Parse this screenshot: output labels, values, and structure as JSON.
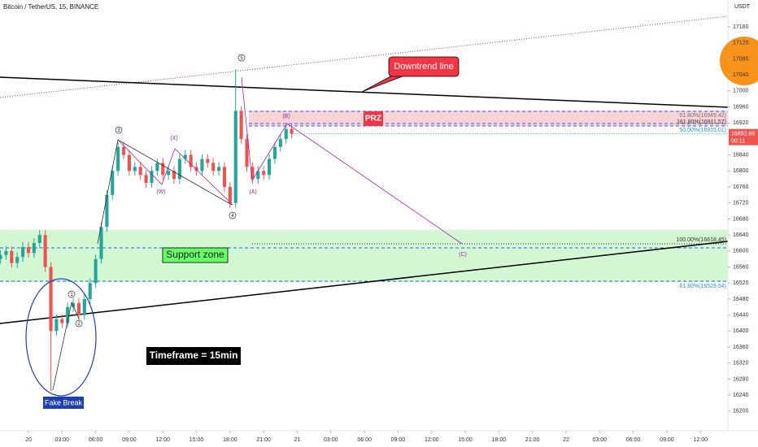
{
  "chart_data": {
    "type": "candlestick",
    "title": "Bitcoin / TetherUS, 15, BINANCE",
    "y_unit": "USDT",
    "up_color": "#26a69a",
    "down_color": "#ef5350",
    "grid": false,
    "xlim": [
      -2.54,
      62.45
    ],
    "ylim": [
      16151,
      17227
    ],
    "xticks": [
      {
        "value": 0,
        "label": "20"
      },
      {
        "value": 3,
        "label": "03:00"
      },
      {
        "value": 6,
        "label": "06:00"
      },
      {
        "value": 9,
        "label": "09:00"
      },
      {
        "value": 12,
        "label": "12:00"
      },
      {
        "value": 15,
        "label": "15:00"
      },
      {
        "value": 18,
        "label": "18:00"
      },
      {
        "value": 21,
        "label": "21:00"
      },
      {
        "value": 24,
        "label": "21"
      },
      {
        "value": 27,
        "label": "03:00"
      },
      {
        "value": 30,
        "label": "06:00"
      },
      {
        "value": 33,
        "label": "09:00"
      },
      {
        "value": 36,
        "label": "12:00"
      },
      {
        "value": 39,
        "label": "15:00"
      },
      {
        "value": 42,
        "label": "18:00"
      },
      {
        "value": 45,
        "label": "21:00"
      },
      {
        "value": 48,
        "label": "22"
      },
      {
        "value": 51,
        "label": "03:00"
      },
      {
        "value": 54,
        "label": "06:00"
      },
      {
        "value": 57,
        "label": "09:00"
      },
      {
        "value": 60,
        "label": "12:00"
      }
    ],
    "yticks": [
      17160,
      17120,
      17080,
      17040,
      17000,
      16960,
      16920,
      16840,
      16800,
      16760,
      16720,
      16680,
      16640,
      16600,
      16560,
      16520,
      16480,
      16440,
      16400,
      16360,
      16320,
      16280,
      16240,
      16200
    ],
    "last_price": 16892.68,
    "last_price_label": "16892.68",
    "countdown": "00:11",
    "x": [
      -2.5,
      -2,
      -1.5,
      -1,
      -0.5,
      0,
      0.5,
      1,
      1.5,
      2,
      2.5,
      3,
      3.5,
      4,
      4.5,
      5,
      5.5,
      6,
      6.5,
      7,
      7.5,
      8,
      8.5,
      9,
      9.5,
      10,
      10.5,
      11,
      11.5,
      12,
      12.5,
      13,
      13.5,
      14,
      14.5,
      15,
      15.5,
      16,
      16.5,
      17,
      17.5,
      18,
      18.5,
      19,
      19.5,
      20,
      20.5,
      21,
      21.5,
      22,
      22.5,
      23,
      23.5
    ],
    "open": [
      16580,
      16590,
      16600,
      16570,
      16585,
      16610,
      16595,
      16620,
      16640,
      16560,
      16400,
      16430,
      16420,
      16460,
      16470,
      16440,
      16480,
      16520,
      16580,
      16660,
      16740,
      16800,
      16860,
      16840,
      16800,
      16810,
      16790,
      16770,
      16800,
      16820,
      16790,
      16800,
      16780,
      16830,
      16840,
      16810,
      16800,
      16830,
      16820,
      16800,
      16810,
      16760,
      16720,
      16950,
      16880,
      16810,
      16780,
      16800,
      16790,
      16830,
      16860,
      16880,
      16905
    ],
    "high": [
      16602,
      16612,
      16612,
      16597,
      16622,
      16622,
      16632,
      16652,
      16652,
      16572,
      16442,
      16442,
      16472,
      16482,
      16482,
      16492,
      16532,
      16592,
      16672,
      16752,
      16812,
      16872,
      16872,
      16852,
      16822,
      16822,
      16802,
      16812,
      16832,
      16832,
      16812,
      16812,
      16842,
      16852,
      16852,
      16822,
      16842,
      16842,
      16832,
      16822,
      16822,
      16772,
      17054,
      16962,
      16892,
      16822,
      16812,
      16812,
      16842,
      16872,
      16892,
      16917,
      16917
    ],
    "low": [
      16568,
      16578,
      16558,
      16558,
      16573,
      16583,
      16583,
      16608,
      16548,
      16250,
      16388,
      16408,
      16408,
      16448,
      16428,
      16428,
      16468,
      16508,
      16568,
      16648,
      16728,
      16788,
      16828,
      16788,
      16788,
      16778,
      16758,
      16758,
      16788,
      16778,
      16778,
      16768,
      16768,
      16818,
      16798,
      16788,
      16788,
      16808,
      16788,
      16788,
      16748,
      16708,
      16708,
      16868,
      16798,
      16768,
      16768,
      16778,
      16778,
      16818,
      16848,
      16868,
      16881
    ],
    "close": [
      16590,
      16600,
      16570,
      16585,
      16610,
      16595,
      16620,
      16640,
      16560,
      16400,
      16430,
      16420,
      16460,
      16470,
      16440,
      16480,
      16520,
      16580,
      16660,
      16740,
      16800,
      16860,
      16840,
      16800,
      16810,
      16790,
      16770,
      16800,
      16820,
      16790,
      16800,
      16780,
      16830,
      16840,
      16810,
      16800,
      16830,
      16820,
      16800,
      16810,
      16760,
      16720,
      16950,
      16880,
      16810,
      16780,
      16800,
      16790,
      16830,
      16860,
      16880,
      16905,
      16893
    ],
    "labels": {
      "downtrend": "Downtrend line",
      "prz": "PRZ",
      "support": "Support zone",
      "timeframe": "Timeframe = 15min",
      "fake_break": "Fake Break",
      "fib_1": "61.80%(16949.42)",
      "fib_2": "161.80%(16911.57)",
      "fib_3": "50.00%(16915.01)",
      "fib_4": "100.00%(16618.45)",
      "fib_5": "61.80%(16529.54)",
      "w5": "5",
      "w3": "3",
      "w4": "4",
      "w1": "1",
      "w2": "2",
      "wx": "(X)",
      "ww": "(W)",
      "wb": "(B)",
      "wa": "(A)",
      "wc": "(C)"
    }
  }
}
